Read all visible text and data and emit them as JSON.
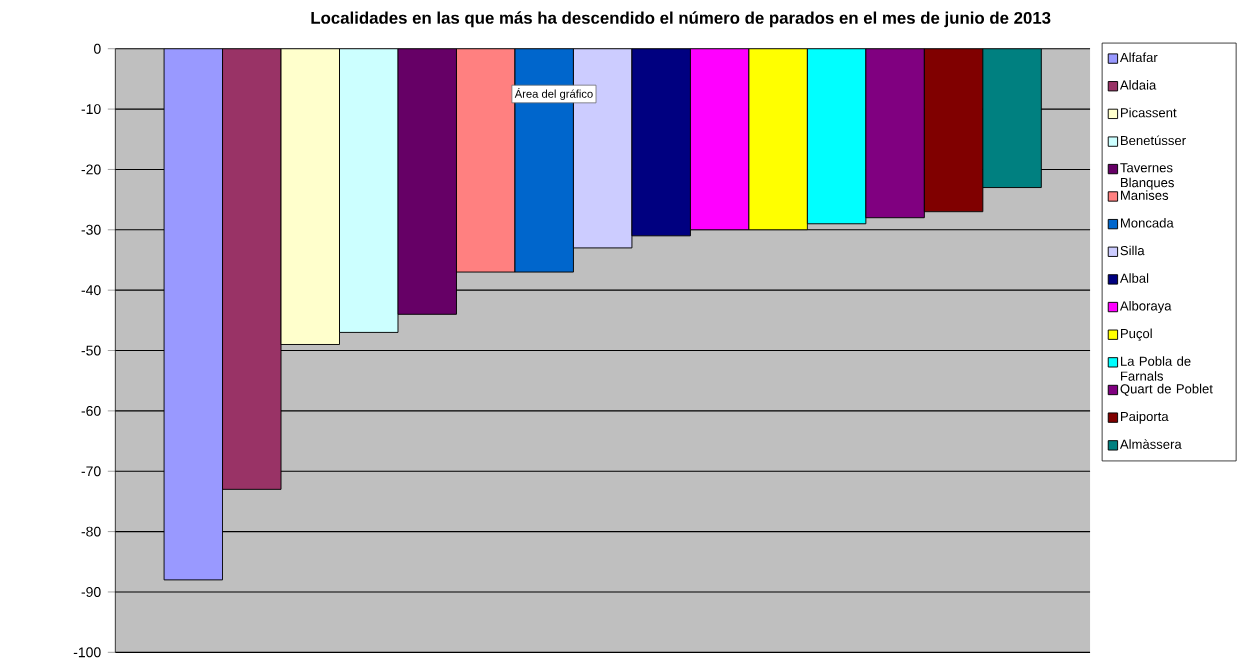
{
  "chart_data": {
    "type": "bar",
    "title": "Localidades en las que más ha descendido el número de parados en el mes de junio de 2013",
    "categories": [
      null
    ],
    "series": [
      {
        "name": "Alfafar",
        "color": "#9999ff",
        "values": [
          -88
        ]
      },
      {
        "name": "Aldaia",
        "color": "#993366",
        "values": [
          -73
        ]
      },
      {
        "name": "Picassent",
        "color": "#ffffcc",
        "values": [
          -49
        ]
      },
      {
        "name": "Benetússer",
        "color": "#ccffff",
        "values": [
          -47
        ]
      },
      {
        "name": "Tavernes Blanques",
        "color": "#660066",
        "values": [
          -44
        ]
      },
      {
        "name": "Manises",
        "color": "#ff8080",
        "values": [
          -37
        ]
      },
      {
        "name": "Moncada",
        "color": "#0066cc",
        "values": [
          -37
        ]
      },
      {
        "name": "Silla",
        "color": "#ccccff",
        "values": [
          -33
        ]
      },
      {
        "name": "Albal",
        "color": "#000080",
        "values": [
          -31
        ]
      },
      {
        "name": "Alboraya",
        "color": "#ff00ff",
        "values": [
          -30
        ]
      },
      {
        "name": "Puçol",
        "color": "#ffff00",
        "values": [
          -30
        ]
      },
      {
        "name": "La Pobla de Farnals",
        "color": "#00ffff",
        "values": [
          -29
        ]
      },
      {
        "name": "Quart de Poblet",
        "color": "#800080",
        "values": [
          -28
        ]
      },
      {
        "name": "Paiporta",
        "color": "#800000",
        "values": [
          -27
        ]
      },
      {
        "name": "Almàssera",
        "color": "#008080",
        "values": [
          -23
        ]
      }
    ],
    "ylim": [
      -100,
      0
    ],
    "yticks": [
      -100,
      -90,
      -80,
      -70,
      -60,
      -50,
      -40,
      -30,
      -20,
      -10,
      0
    ],
    "grid": "y",
    "legend": "right",
    "annotations": [
      "Área del gráfico"
    ]
  }
}
